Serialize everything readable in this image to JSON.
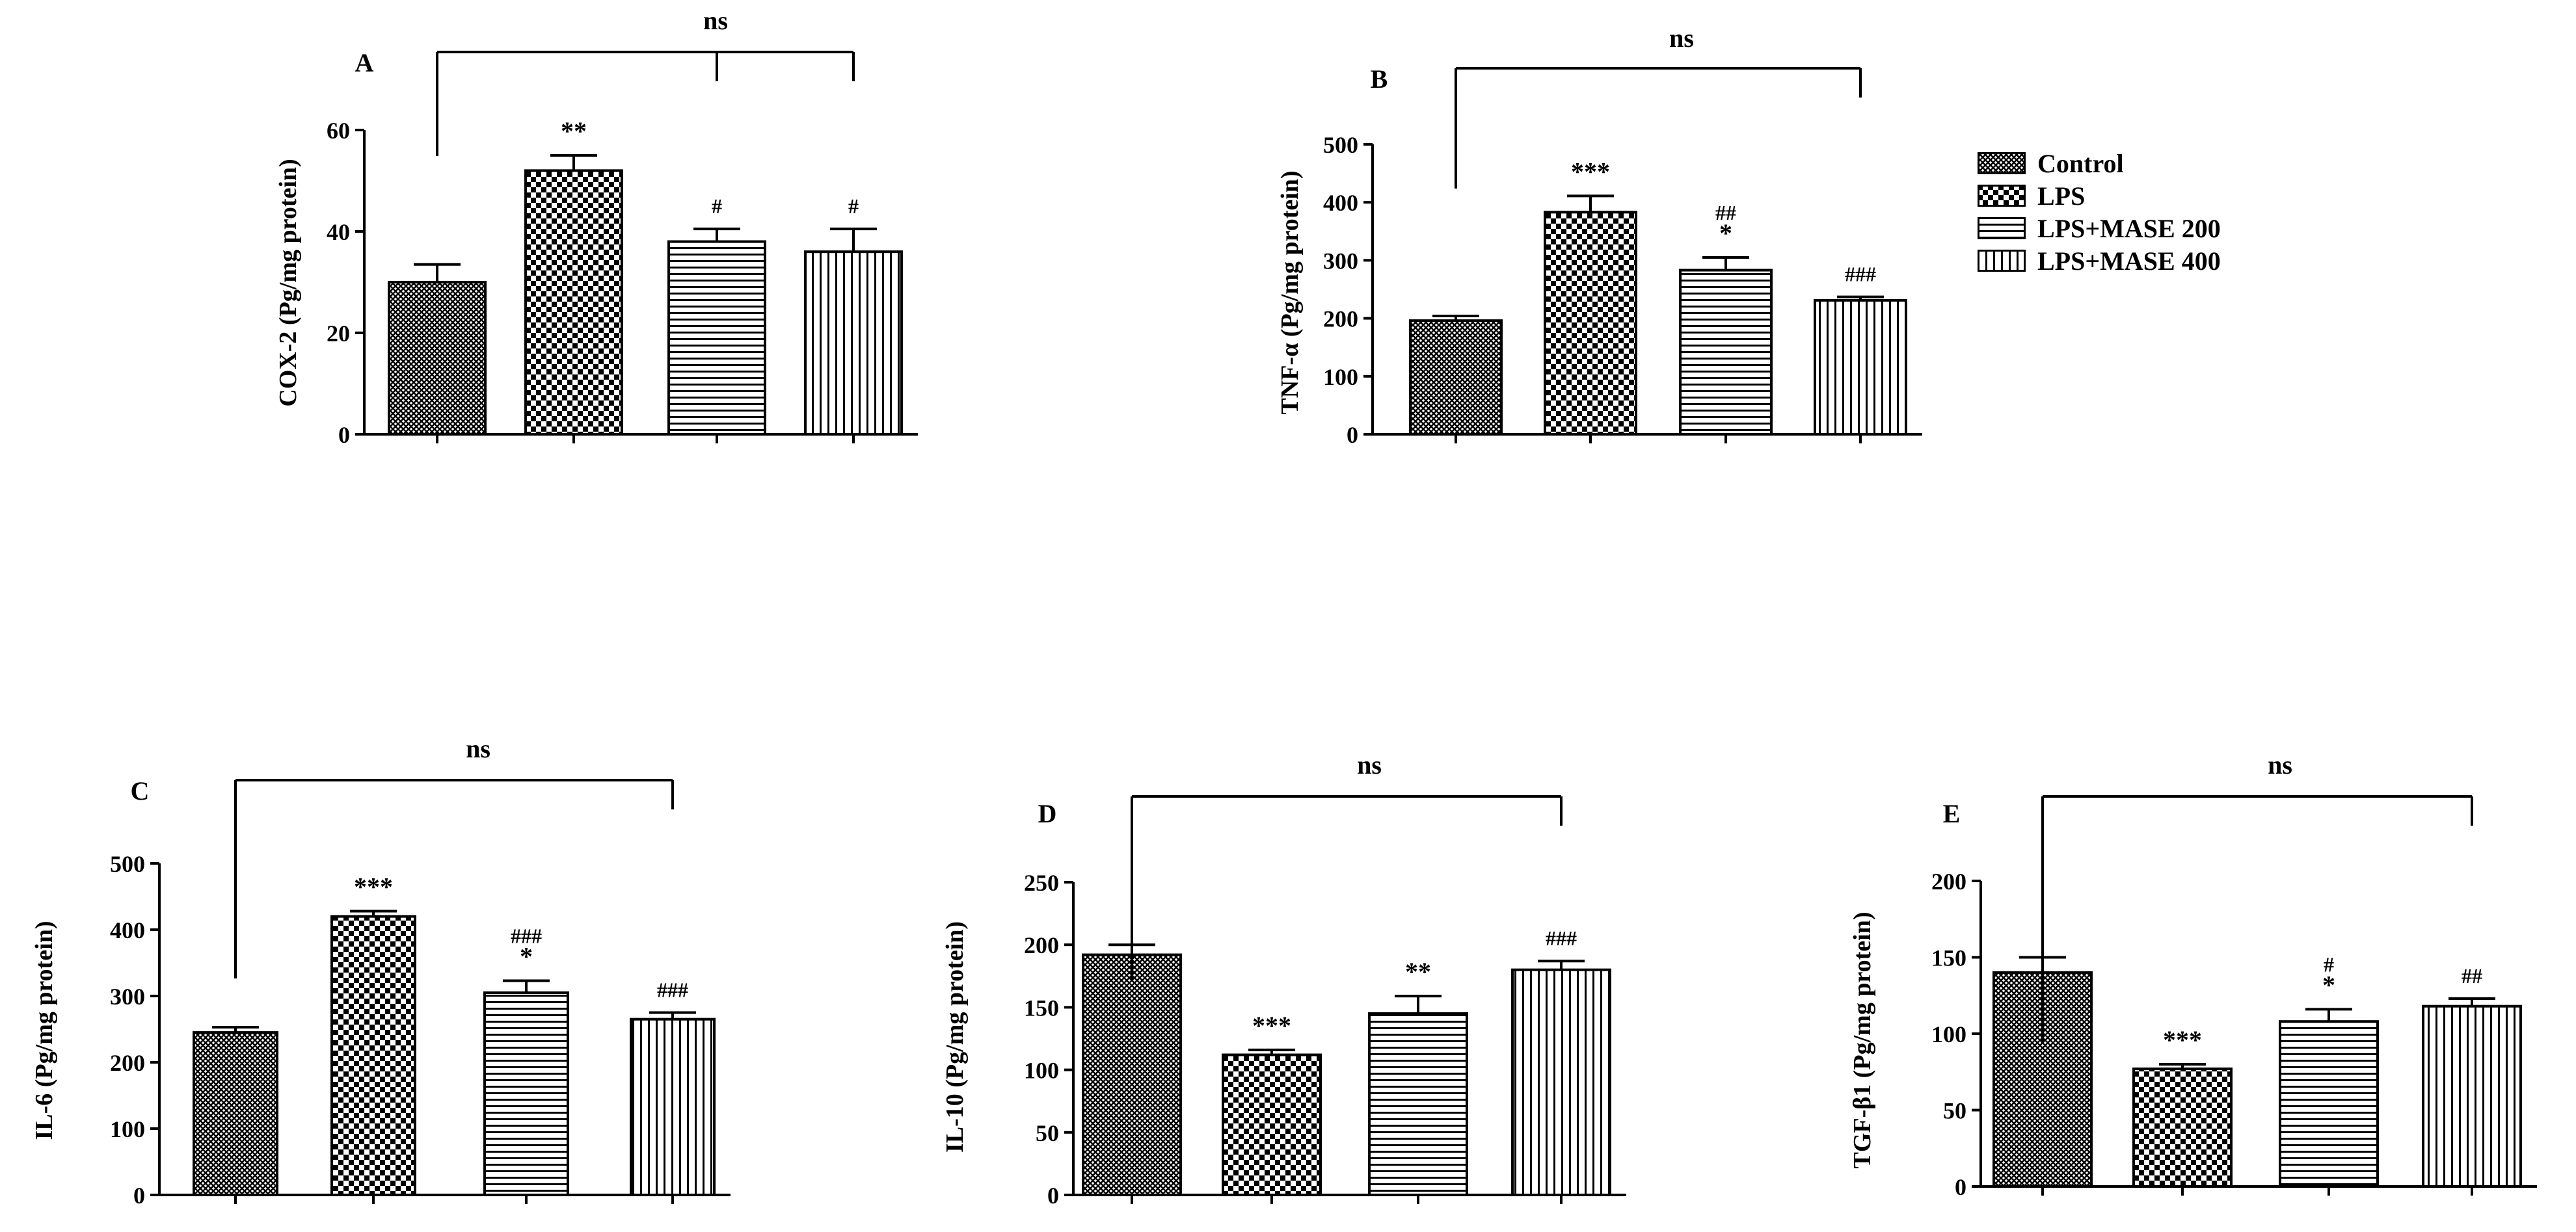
{
  "chart_data": [
    {
      "type": "bar",
      "panel_label": "A",
      "ylabel": "COX-2 (Pg/mg protein)",
      "ylim": [
        0,
        60
      ],
      "yticks": [
        0,
        20,
        40,
        60
      ],
      "categories": [
        "Control",
        "LPS",
        "LPS+MASE 200",
        "LPS+MASE 400"
      ],
      "values": [
        30,
        52,
        38,
        36
      ],
      "errors": [
        3.5,
        3,
        2.5,
        4.5
      ],
      "annotations": [
        "",
        "**",
        "#",
        "#"
      ],
      "bracket_label": "ns",
      "bracket_ticks": [
        0,
        2,
        3
      ]
    },
    {
      "type": "bar",
      "panel_label": "B",
      "ylabel": "TNF-α (Pg/mg protein)",
      "ylim": [
        0,
        500
      ],
      "yticks": [
        0,
        100,
        200,
        300,
        400,
        500
      ],
      "categories": [
        "Control",
        "LPS",
        "LPS+MASE 200",
        "LPS+MASE 400"
      ],
      "values": [
        196,
        383,
        283,
        231
      ],
      "errors": [
        8,
        28,
        22,
        6
      ],
      "annotations": [
        "",
        "***",
        "##\n*",
        "###"
      ],
      "bracket_label": "ns",
      "bracket_ticks": [
        0,
        3
      ]
    },
    {
      "type": "bar",
      "panel_label": "C",
      "ylabel": "IL-6 (Pg/mg protein)",
      "ylim": [
        0,
        500
      ],
      "yticks": [
        0,
        100,
        200,
        300,
        400,
        500
      ],
      "categories": [
        "Control",
        "LPS",
        "LPS+MASE 200",
        "LPS+MASE 400"
      ],
      "values": [
        245,
        420,
        305,
        265
      ],
      "errors": [
        8,
        8,
        18,
        10
      ],
      "annotations": [
        "",
        "***",
        "###\n*",
        "###"
      ],
      "bracket_label": "ns",
      "bracket_ticks": [
        0,
        3
      ]
    },
    {
      "type": "bar",
      "panel_label": "D",
      "ylabel": "IL-10 (Pg/mg protein)",
      "ylim": [
        0,
        250
      ],
      "yticks": [
        0,
        50,
        100,
        150,
        200,
        250
      ],
      "categories": [
        "Control",
        "LPS",
        "LPS+MASE 200",
        "LPS+MASE 400"
      ],
      "values": [
        192,
        112,
        145,
        180
      ],
      "errors": [
        8,
        4,
        14,
        7
      ],
      "annotations": [
        "",
        "***",
        "**",
        "###"
      ],
      "bracket_label": "ns",
      "bracket_ticks": [
        0,
        3
      ]
    },
    {
      "type": "bar",
      "panel_label": "E",
      "ylabel": "TGF-β1 (Pg/mg protein)",
      "ylim": [
        0,
        200
      ],
      "yticks": [
        0,
        50,
        100,
        150,
        200
      ],
      "categories": [
        "Control",
        "LPS",
        "LPS+MASE 200",
        "LPS+MASE 400"
      ],
      "values": [
        140,
        77,
        108,
        118
      ],
      "errors": [
        10,
        3,
        8,
        5
      ],
      "annotations": [
        "",
        "***",
        "#\n*",
        "##"
      ],
      "bracket_label": "ns",
      "bracket_ticks": [
        0,
        3
      ]
    }
  ],
  "legend": {
    "items": [
      {
        "label": "Control",
        "pattern": "dense-cross"
      },
      {
        "label": "LPS",
        "pattern": "checker"
      },
      {
        "label": "LPS+MASE 200",
        "pattern": "horizontal"
      },
      {
        "label": "LPS+MASE 400",
        "pattern": "vertical"
      }
    ]
  }
}
